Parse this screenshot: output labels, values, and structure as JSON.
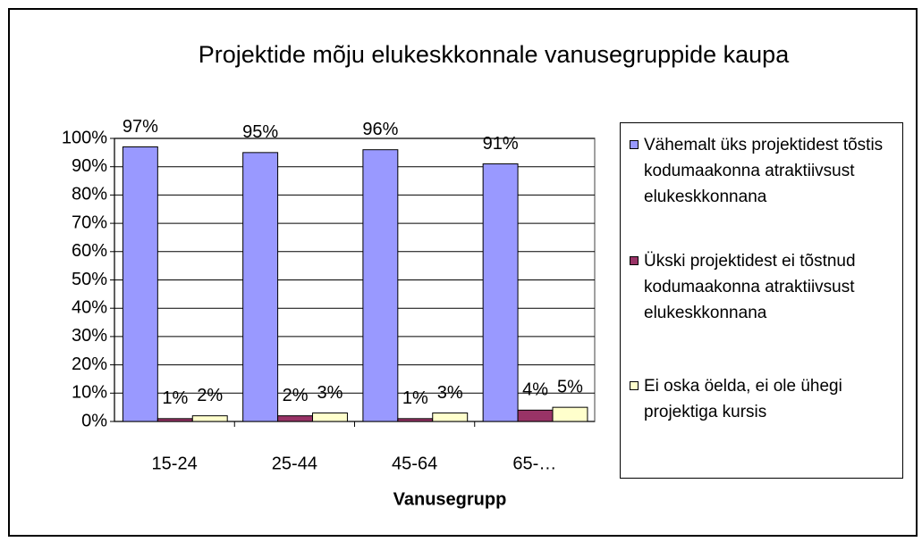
{
  "chart_data": {
    "type": "bar",
    "title": "Projektide mõju elukeskkonnale vanusegruppide kaupa",
    "x_label": "Vanusegrupp",
    "categories": [
      "15-24",
      "25-44",
      "45-64",
      "65-…"
    ],
    "series": [
      {
        "name": "Vähemalt üks projektidest tõstis kodumaakonna atraktiivsust elukeskkonnana",
        "color": "#9999ff",
        "values": [
          97,
          95,
          96,
          91
        ],
        "value_labels": [
          "97%",
          "95%",
          "96%",
          "91%"
        ]
      },
      {
        "name": "Ükski projektidest ei tõstnud kodumaakonna atraktiivsust elukeskkonnana",
        "color": "#993366",
        "values": [
          1,
          2,
          1,
          4
        ],
        "value_labels": [
          "1%",
          "2%",
          "1%",
          "4%"
        ]
      },
      {
        "name": "Ei oska öelda, ei ole ühegi projektiga kursis",
        "color": "#ffffcc",
        "values": [
          2,
          3,
          3,
          5
        ],
        "value_labels": [
          "2%",
          "3%",
          "3%",
          "5%"
        ]
      }
    ],
    "ylim": [
      0,
      100
    ],
    "yticks": [
      {
        "value": 0,
        "label": "0%"
      },
      {
        "value": 10,
        "label": "10%"
      },
      {
        "value": 20,
        "label": "20%"
      },
      {
        "value": 30,
        "label": "30%"
      },
      {
        "value": 40,
        "label": "40%"
      },
      {
        "value": 50,
        "label": "50%"
      },
      {
        "value": 60,
        "label": "60%"
      },
      {
        "value": 70,
        "label": "70%"
      },
      {
        "value": 80,
        "label": "80%"
      },
      {
        "value": 90,
        "label": "90%"
      },
      {
        "value": 100,
        "label": "100%"
      }
    ],
    "grid": true
  }
}
